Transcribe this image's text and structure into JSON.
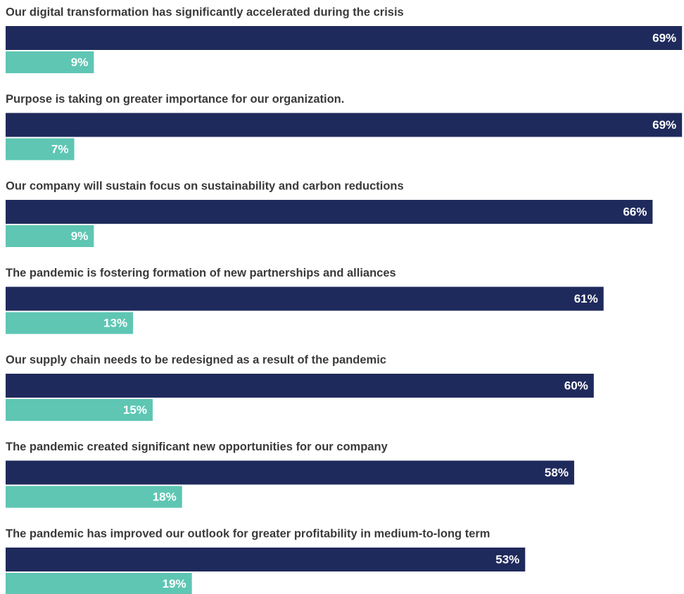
{
  "chart_data": {
    "type": "bar",
    "orientation": "horizontal",
    "categories": [
      "Our digital transformation has significantly accelerated during the crisis",
      "Purpose is taking on greater importance for our organization.",
      "Our company will sustain focus on sustainability and carbon reductions",
      "The pandemic is fostering formation of new partnerships and alliances",
      "Our supply chain needs to be redesigned as a result of the pandemic",
      "The pandemic created significant new opportunities for our company",
      "The pandemic has improved our outlook for greater profitability in medium-to-long term"
    ],
    "series": [
      {
        "color": "#1f2a5c",
        "values": [
          69,
          69,
          66,
          61,
          60,
          58,
          53
        ],
        "value_labels": [
          "69%",
          "69%",
          "66%",
          "61%",
          "60%",
          "58%",
          "53%"
        ]
      },
      {
        "color": "#5ec6b3",
        "values": [
          9,
          7,
          9,
          13,
          15,
          18,
          19
        ],
        "value_labels": [
          "9%",
          "7%",
          "9%",
          "13%",
          "15%",
          "18%",
          "19%"
        ]
      }
    ]
  }
}
